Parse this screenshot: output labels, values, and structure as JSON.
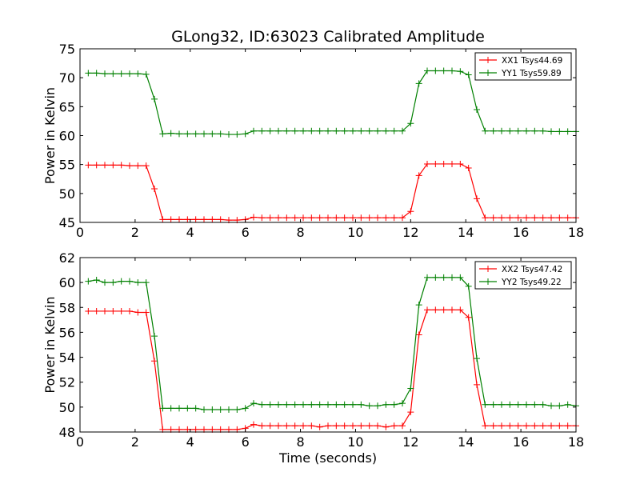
{
  "chart_data": [
    {
      "type": "line",
      "title": "GLong32, ID:63023 Calibrated Amplitude",
      "xlabel": "",
      "ylabel": "Power in Kelvin",
      "xlim": [
        0,
        18
      ],
      "ylim": [
        45,
        75
      ],
      "xticks": [
        0,
        2,
        4,
        6,
        8,
        10,
        12,
        14,
        16,
        18
      ],
      "yticks": [
        45,
        50,
        55,
        60,
        65,
        70,
        75
      ],
      "legend_position": "top-right",
      "x": [
        0.3,
        0.6,
        0.9,
        1.2,
        1.5,
        1.8,
        2.1,
        2.4,
        2.7,
        3.0,
        3.3,
        3.6,
        3.9,
        4.2,
        4.5,
        4.8,
        5.1,
        5.4,
        5.7,
        6.0,
        6.3,
        6.6,
        6.9,
        7.2,
        7.5,
        7.8,
        8.1,
        8.4,
        8.7,
        9.0,
        9.3,
        9.6,
        9.9,
        10.2,
        10.5,
        10.8,
        11.1,
        11.4,
        11.7,
        12.0,
        12.3,
        12.6,
        12.9,
        13.2,
        13.5,
        13.8,
        14.1,
        14.4,
        14.7,
        15.0,
        15.3,
        15.6,
        15.9,
        16.2,
        16.5,
        16.8,
        17.1,
        17.4,
        17.7,
        18.0
      ],
      "series": [
        {
          "name": "XX1 Tsys44.69",
          "color": "#ff0000",
          "values": [
            54.9,
            54.9,
            54.9,
            54.9,
            54.9,
            54.8,
            54.8,
            54.8,
            50.8,
            45.5,
            45.5,
            45.5,
            45.5,
            45.5,
            45.5,
            45.5,
            45.5,
            45.4,
            45.4,
            45.5,
            45.9,
            45.8,
            45.8,
            45.8,
            45.8,
            45.8,
            45.8,
            45.8,
            45.8,
            45.8,
            45.8,
            45.8,
            45.8,
            45.8,
            45.8,
            45.8,
            45.8,
            45.8,
            45.8,
            46.9,
            53.1,
            55.1,
            55.1,
            55.1,
            55.1,
            55.1,
            54.4,
            49.1,
            45.8,
            45.8,
            45.8,
            45.8,
            45.8,
            45.8,
            45.8,
            45.8,
            45.8,
            45.8,
            45.8,
            45.8
          ]
        },
        {
          "name": "YY1 Tsys59.89",
          "color": "#008000",
          "values": [
            70.8,
            70.8,
            70.7,
            70.7,
            70.7,
            70.7,
            70.7,
            70.6,
            66.3,
            60.3,
            60.4,
            60.3,
            60.3,
            60.3,
            60.3,
            60.3,
            60.3,
            60.2,
            60.2,
            60.3,
            60.8,
            60.8,
            60.8,
            60.8,
            60.8,
            60.8,
            60.8,
            60.8,
            60.8,
            60.8,
            60.8,
            60.8,
            60.8,
            60.8,
            60.8,
            60.8,
            60.8,
            60.8,
            60.8,
            62.1,
            69.0,
            71.2,
            71.2,
            71.2,
            71.2,
            71.1,
            70.5,
            64.5,
            60.8,
            60.8,
            60.8,
            60.8,
            60.8,
            60.8,
            60.8,
            60.8,
            60.7,
            60.7,
            60.7,
            60.7
          ]
        }
      ]
    },
    {
      "type": "line",
      "title": "",
      "xlabel": "Time (seconds)",
      "ylabel": "Power in Kelvin",
      "xlim": [
        0,
        18
      ],
      "ylim": [
        48,
        62
      ],
      "xticks": [
        0,
        2,
        4,
        6,
        8,
        10,
        12,
        14,
        16,
        18
      ],
      "yticks": [
        48,
        50,
        52,
        54,
        56,
        58,
        60,
        62
      ],
      "legend_position": "top-right",
      "x": [
        0.3,
        0.6,
        0.9,
        1.2,
        1.5,
        1.8,
        2.1,
        2.4,
        2.7,
        3.0,
        3.3,
        3.6,
        3.9,
        4.2,
        4.5,
        4.8,
        5.1,
        5.4,
        5.7,
        6.0,
        6.3,
        6.6,
        6.9,
        7.2,
        7.5,
        7.8,
        8.1,
        8.4,
        8.7,
        9.0,
        9.3,
        9.6,
        9.9,
        10.2,
        10.5,
        10.8,
        11.1,
        11.4,
        11.7,
        12.0,
        12.3,
        12.6,
        12.9,
        13.2,
        13.5,
        13.8,
        14.1,
        14.4,
        14.7,
        15.0,
        15.3,
        15.6,
        15.9,
        16.2,
        16.5,
        16.8,
        17.1,
        17.4,
        17.7,
        18.0
      ],
      "series": [
        {
          "name": "XX2 Tsys47.42",
          "color": "#ff0000",
          "values": [
            57.7,
            57.7,
            57.7,
            57.7,
            57.7,
            57.7,
            57.6,
            57.6,
            53.7,
            48.2,
            48.2,
            48.2,
            48.2,
            48.2,
            48.2,
            48.2,
            48.2,
            48.2,
            48.2,
            48.3,
            48.6,
            48.5,
            48.5,
            48.5,
            48.5,
            48.5,
            48.5,
            48.5,
            48.4,
            48.5,
            48.5,
            48.5,
            48.5,
            48.5,
            48.5,
            48.5,
            48.4,
            48.5,
            48.5,
            49.6,
            55.8,
            57.8,
            57.8,
            57.8,
            57.8,
            57.8,
            57.2,
            51.8,
            48.5,
            48.5,
            48.5,
            48.5,
            48.5,
            48.5,
            48.5,
            48.5,
            48.5,
            48.5,
            48.5,
            48.5
          ]
        },
        {
          "name": "YY2 Tsys49.22",
          "color": "#008000",
          "values": [
            60.1,
            60.2,
            60.0,
            60.0,
            60.1,
            60.1,
            60.0,
            60.0,
            55.7,
            49.9,
            49.9,
            49.9,
            49.9,
            49.9,
            49.8,
            49.8,
            49.8,
            49.8,
            49.8,
            49.9,
            50.3,
            50.2,
            50.2,
            50.2,
            50.2,
            50.2,
            50.2,
            50.2,
            50.2,
            50.2,
            50.2,
            50.2,
            50.2,
            50.2,
            50.1,
            50.1,
            50.2,
            50.2,
            50.3,
            51.5,
            58.2,
            60.4,
            60.4,
            60.4,
            60.4,
            60.4,
            59.7,
            53.9,
            50.2,
            50.2,
            50.2,
            50.2,
            50.2,
            50.2,
            50.2,
            50.2,
            50.1,
            50.1,
            50.2,
            50.1
          ]
        }
      ]
    }
  ]
}
